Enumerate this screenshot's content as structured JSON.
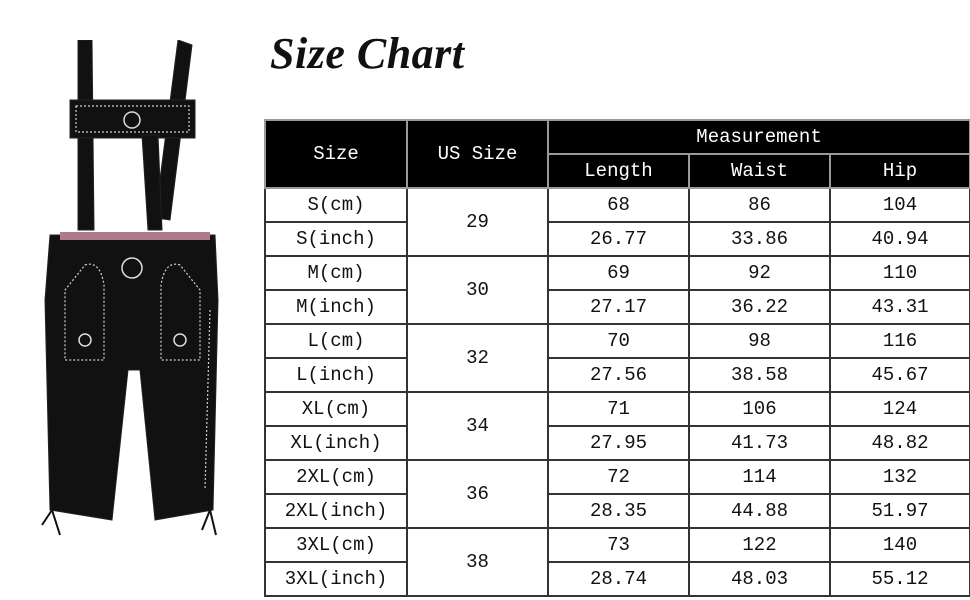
{
  "title": "Size Chart",
  "headers": {
    "size": "Size",
    "us_size": "US Size",
    "measurement": "Measurement",
    "length": "Length",
    "waist": "Waist",
    "hip": "Hip"
  },
  "groups": [
    {
      "us": "29",
      "rows": [
        {
          "size": "S(cm)",
          "length": "68",
          "waist": "86",
          "hip": "104"
        },
        {
          "size": "S(inch)",
          "length": "26.77",
          "waist": "33.86",
          "hip": "40.94"
        }
      ]
    },
    {
      "us": "30",
      "rows": [
        {
          "size": "M(cm)",
          "length": "69",
          "waist": "92",
          "hip": "110"
        },
        {
          "size": "M(inch)",
          "length": "27.17",
          "waist": "36.22",
          "hip": "43.31"
        }
      ]
    },
    {
      "us": "32",
      "rows": [
        {
          "size": "L(cm)",
          "length": "70",
          "waist": "98",
          "hip": "116"
        },
        {
          "size": "L(inch)",
          "length": "27.56",
          "waist": "38.58",
          "hip": "45.67"
        }
      ]
    },
    {
      "us": "34",
      "rows": [
        {
          "size": "XL(cm)",
          "length": "71",
          "waist": "106",
          "hip": "124"
        },
        {
          "size": "XL(inch)",
          "length": "27.95",
          "waist": "41.73",
          "hip": "48.82"
        }
      ]
    },
    {
      "us": "36",
      "rows": [
        {
          "size": "2XL(cm)",
          "length": "72",
          "waist": "114",
          "hip": "132"
        },
        {
          "size": "2XL(inch)",
          "length": "28.35",
          "waist": "44.88",
          "hip": "51.97"
        }
      ]
    },
    {
      "us": "38",
      "rows": [
        {
          "size": "3XL(cm)",
          "length": "73",
          "waist": "122",
          "hip": "140"
        },
        {
          "size": "3XL(inch)",
          "length": "28.74",
          "waist": "48.03",
          "hip": "55.12"
        }
      ]
    }
  ],
  "colors": {
    "header_bg": "#000000",
    "header_text": "#ffffff",
    "garment": "#111111",
    "embroidery": "#cfcfcf"
  }
}
